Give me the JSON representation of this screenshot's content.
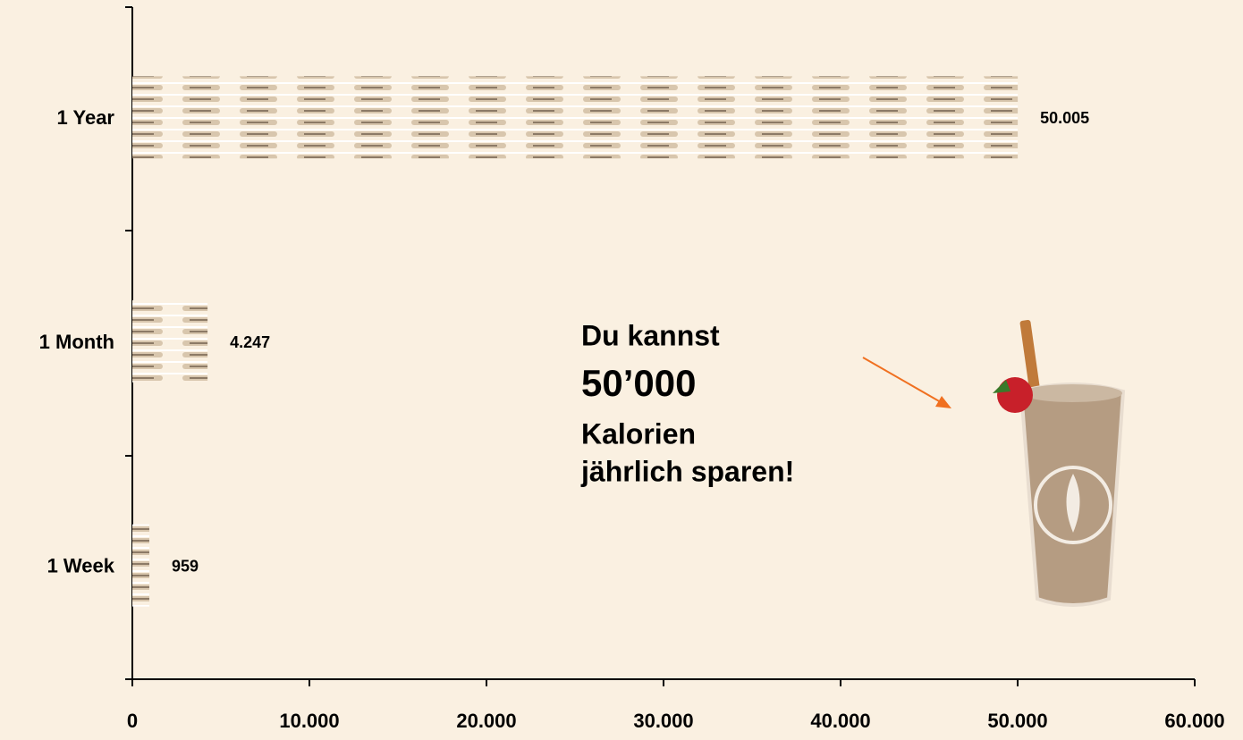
{
  "chart_data": {
    "type": "bar",
    "orientation": "horizontal",
    "categories": [
      "1 Year",
      "1 Month",
      "1 Week"
    ],
    "values": [
      50005,
      4247,
      959
    ],
    "value_labels": [
      "50.005",
      "4.247",
      "959"
    ],
    "color": "#c9b498",
    "xlim": [
      0,
      60000
    ],
    "xticks": [
      0,
      {
        "value": 10000,
        "label": "10.000"
      },
      {
        "value": 20000,
        "label": "20.000"
      },
      {
        "value": 30000,
        "label": "30.000"
      },
      {
        "value": 40000,
        "label": "40.000"
      },
      {
        "value": 50000,
        "label": "50.000"
      },
      {
        "value": 60000,
        "label": "60.000"
      }
    ],
    "annotations": [
      "Du kannst",
      "50’000",
      "Kalorien",
      "jährlich sparen!"
    ]
  }
}
